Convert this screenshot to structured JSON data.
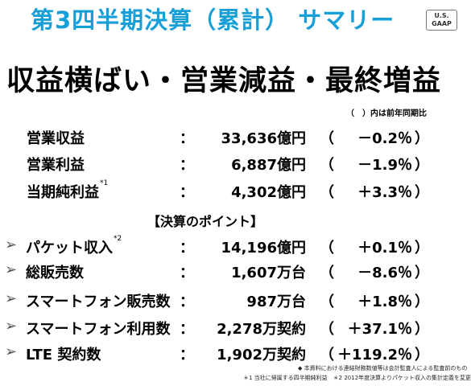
{
  "title": "第3四半期決算（累計） サマリー",
  "badge": {
    "line1": "U.S.",
    "line2": "GAAP"
  },
  "headline": "収益横ばい・営業減益・最終増益",
  "note": "（　）内は前年同期比",
  "summary_rows": [
    {
      "label": "営業収益",
      "sup": "",
      "colon": "：",
      "value": "33,636億円",
      "lparen": "（",
      "pct": "－0.2％",
      "rparen": "）"
    },
    {
      "label": "営業利益",
      "sup": "",
      "colon": "：",
      "value": "6,887億円",
      "lparen": "（",
      "pct": "－1.9％",
      "rparen": "）"
    },
    {
      "label": "当期純利益",
      "sup": "*1",
      "colon": "：",
      "value": "4,302億円",
      "lparen": "（",
      "pct": "＋3.3％",
      "rparen": "）"
    }
  ],
  "points_header": "【決算のポイント】",
  "point_rows": [
    {
      "arrow": "➢",
      "label": "パケット収入",
      "sup": "*2",
      "colon": "：",
      "value": "14,196億円",
      "lparen": "（",
      "pct": "＋0.1％",
      "rparen": "）"
    },
    {
      "arrow": "➢",
      "label": "総販売数",
      "sup": "",
      "colon": "：",
      "value": "1,607万台",
      "lparen": "（",
      "pct": "－8.6％",
      "rparen": "）"
    },
    {
      "arrow": "➢",
      "label": "スマートフォン販売数",
      "sup": "",
      "colon": "：",
      "value": "987万台",
      "lparen": "（",
      "pct": "＋1.8％",
      "rparen": "）"
    },
    {
      "arrow": "➢",
      "label": "スマートフォン利用数",
      "sup": "",
      "colon": "：",
      "value": "2,278万契約",
      "lparen": "（",
      "pct": "＋37.1％",
      "rparen": "）"
    },
    {
      "arrow": "➢",
      "label": "LTE 契約数",
      "sup": "",
      "colon": "：",
      "value": "1,902万契約",
      "lparen": "（",
      "pct": "＋119.2％",
      "rparen": "）"
    }
  ],
  "footnote1": "◆ 本資料における連結財務数値等は会計監査人による監査前のもの",
  "footnote2": "＊1 当社に帰属する四半期純利益　＊2 2012年度決算よりパケット収入の集計定義を変更"
}
